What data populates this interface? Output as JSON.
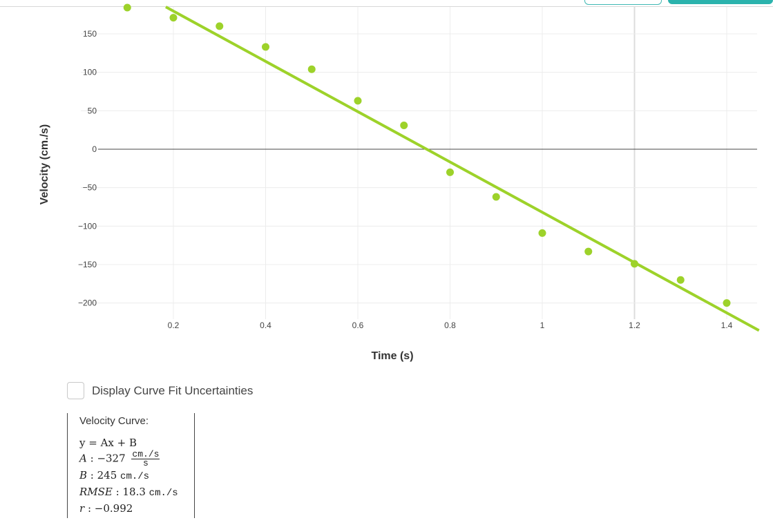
{
  "chart_data": {
    "type": "scatter",
    "xlabel": "Time (s)",
    "ylabel": "Velocity (cm./s)",
    "xlim": [
      0.0,
      1.48
    ],
    "ylim": [
      -215,
      185
    ],
    "x_ticks": [
      0.2,
      0.4,
      0.6,
      0.8,
      1.0,
      1.2,
      1.4
    ],
    "x_tick_labels": [
      "0.2",
      "0.4",
      "0.6",
      "0.8",
      "1",
      "1.2",
      "1.4"
    ],
    "y_ticks": [
      150,
      100,
      50,
      0,
      -50,
      -100,
      -150,
      -200
    ],
    "y_tick_labels": [
      "150",
      "100",
      "50",
      "0",
      "−50",
      "−100",
      "−150",
      "−200"
    ],
    "grid": true,
    "points": [
      {
        "x": 0.1,
        "y": 185
      },
      {
        "x": 0.2,
        "y": 171
      },
      {
        "x": 0.3,
        "y": 160
      },
      {
        "x": 0.4,
        "y": 133
      },
      {
        "x": 0.5,
        "y": 104
      },
      {
        "x": 0.6,
        "y": 63
      },
      {
        "x": 0.7,
        "y": 31
      },
      {
        "x": 0.8,
        "y": -30
      },
      {
        "x": 0.9,
        "y": -62
      },
      {
        "x": 1.0,
        "y": -109
      },
      {
        "x": 1.1,
        "y": -133
      },
      {
        "x": 1.2,
        "y": -149
      },
      {
        "x": 1.3,
        "y": -170
      },
      {
        "x": 1.4,
        "y": -200
      }
    ],
    "fit_line": {
      "slope": -327,
      "intercept": 245
    },
    "colors": {
      "points": "#9dd22a",
      "line": "#9dd22a",
      "grid": "#ececec",
      "zero_line": "#444444"
    }
  },
  "controls": {
    "uncertainty_label": "Display Curve Fit Uncertainties",
    "uncertainty_checked": false
  },
  "results": {
    "title": "Velocity Curve:",
    "equation": "y = Ax + B",
    "A_value": "−327",
    "A_unit_num": "cm./s",
    "A_unit_den": "s",
    "B_value": "245",
    "B_unit": "cm./s",
    "rmse_value": "18.3",
    "rmse_unit": "cm./s",
    "r_value": "−0.992"
  }
}
